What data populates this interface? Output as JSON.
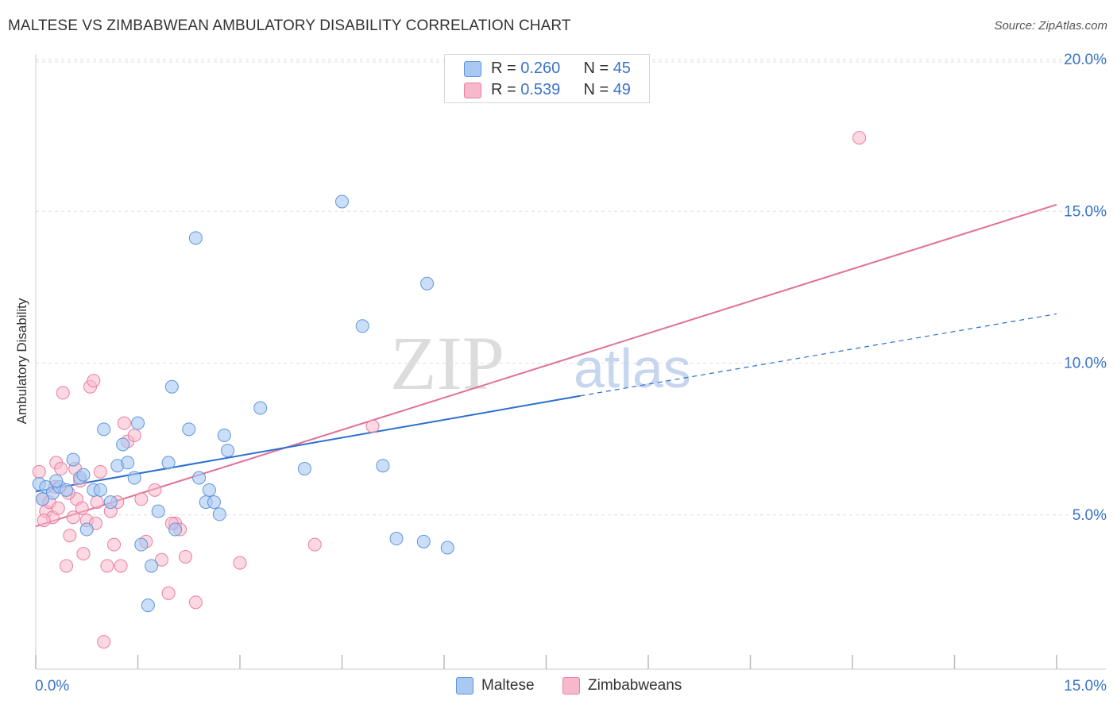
{
  "header": {
    "title": "MALTESE VS ZIMBABWEAN AMBULATORY DISABILITY CORRELATION CHART",
    "source": "Source: ZipAtlas.com"
  },
  "watermark": {
    "zip": "ZIP",
    "atlas": "atlas"
  },
  "legend": {
    "maltese": {
      "r_label": "R = ",
      "r_value": "0.260",
      "n_label": "N = ",
      "n_value": "45"
    },
    "zimbabweans": {
      "r_label": "R = ",
      "r_value": "0.539",
      "n_label": "N = ",
      "n_value": "49"
    }
  },
  "colors": {
    "maltese_fill": "#a9c8f2",
    "maltese_stroke": "#5f95dc",
    "maltese_line": "#2a6fcf",
    "zimbabweans_fill": "#f7b8cb",
    "zimbabweans_stroke": "#e87fa0",
    "zimbabweans_line": "#e07098",
    "tick_label": "#3a74c9"
  },
  "chart_data": {
    "type": "scatter",
    "title": "MALTESE VS ZIMBABWEAN AMBULATORY DISABILITY CORRELATION CHART",
    "xlabel": "",
    "ylabel": "Ambulatory Disability",
    "xlim": [
      0,
      15
    ],
    "ylim": [
      0,
      20
    ],
    "x_tick_labels": [
      "0.0%",
      "15.0%"
    ],
    "y_tick_labels": [
      "5.0%",
      "10.0%",
      "15.0%",
      "20.0%"
    ],
    "y_tick_values": [
      5,
      10,
      15,
      20
    ],
    "grid": true,
    "legend_position": "top-center",
    "series": [
      {
        "name": "Maltese",
        "points": [
          [
            0.05,
            6.1
          ],
          [
            0.15,
            6.0
          ],
          [
            0.25,
            5.8
          ],
          [
            0.35,
            6.0
          ],
          [
            0.45,
            5.9
          ],
          [
            0.55,
            6.9
          ],
          [
            0.65,
            6.3
          ],
          [
            0.75,
            4.6
          ],
          [
            0.85,
            5.9
          ],
          [
            0.95,
            5.9
          ],
          [
            1.0,
            7.9
          ],
          [
            1.1,
            5.5
          ],
          [
            1.2,
            6.7
          ],
          [
            1.28,
            7.4
          ],
          [
            1.35,
            6.8
          ],
          [
            1.45,
            6.3
          ],
          [
            1.5,
            8.1
          ],
          [
            1.55,
            4.1
          ],
          [
            1.65,
            2.1
          ],
          [
            1.7,
            3.4
          ],
          [
            1.8,
            5.2
          ],
          [
            1.95,
            6.8
          ],
          [
            2.0,
            9.3
          ],
          [
            2.05,
            4.6
          ],
          [
            2.25,
            7.9
          ],
          [
            2.35,
            14.2
          ],
          [
            2.4,
            6.3
          ],
          [
            2.5,
            5.5
          ],
          [
            2.55,
            5.9
          ],
          [
            2.62,
            5.5
          ],
          [
            2.7,
            5.1
          ],
          [
            2.77,
            7.7
          ],
          [
            2.82,
            7.2
          ],
          [
            3.3,
            8.6
          ],
          [
            3.95,
            6.6
          ],
          [
            4.5,
            15.4
          ],
          [
            4.8,
            11.3
          ],
          [
            5.1,
            6.7
          ],
          [
            5.3,
            4.3
          ],
          [
            5.7,
            4.2
          ],
          [
            5.75,
            12.7
          ],
          [
            6.05,
            4.0
          ],
          [
            0.1,
            5.6
          ],
          [
            0.3,
            6.2
          ],
          [
            0.7,
            6.4
          ]
        ]
      },
      {
        "name": "Zimbabweans",
        "points": [
          [
            0.05,
            6.5
          ],
          [
            0.1,
            5.6
          ],
          [
            0.15,
            5.2
          ],
          [
            0.2,
            5.5
          ],
          [
            0.25,
            5.0
          ],
          [
            0.3,
            6.8
          ],
          [
            0.33,
            5.3
          ],
          [
            0.37,
            6.6
          ],
          [
            0.4,
            9.1
          ],
          [
            0.45,
            3.4
          ],
          [
            0.5,
            4.4
          ],
          [
            0.55,
            5.0
          ],
          [
            0.6,
            5.6
          ],
          [
            0.65,
            6.2
          ],
          [
            0.7,
            3.8
          ],
          [
            0.75,
            4.9
          ],
          [
            0.8,
            9.3
          ],
          [
            0.85,
            9.5
          ],
          [
            0.9,
            5.5
          ],
          [
            0.95,
            6.5
          ],
          [
            1.0,
            0.9
          ],
          [
            1.05,
            3.4
          ],
          [
            1.15,
            4.1
          ],
          [
            1.2,
            5.5
          ],
          [
            1.25,
            3.4
          ],
          [
            1.3,
            8.1
          ],
          [
            1.35,
            7.5
          ],
          [
            1.45,
            7.7
          ],
          [
            1.55,
            5.6
          ],
          [
            1.62,
            4.2
          ],
          [
            1.75,
            5.9
          ],
          [
            1.85,
            3.6
          ],
          [
            1.95,
            2.5
          ],
          [
            2.05,
            4.8
          ],
          [
            2.12,
            4.6
          ],
          [
            2.2,
            3.7
          ],
          [
            2.35,
            2.2
          ],
          [
            3.0,
            3.5
          ],
          [
            4.1,
            4.1
          ],
          [
            4.95,
            8.0
          ],
          [
            12.1,
            17.5
          ],
          [
            0.12,
            4.9
          ],
          [
            0.28,
            6.0
          ],
          [
            0.48,
            5.8
          ],
          [
            0.58,
            6.6
          ],
          [
            0.68,
            5.3
          ],
          [
            0.88,
            4.8
          ],
          [
            1.1,
            5.2
          ],
          [
            2.0,
            4.8
          ]
        ]
      }
    ],
    "trendlines": [
      {
        "series": "Maltese",
        "x": [
          0,
          8
        ],
        "y": [
          5.85,
          9.0
        ],
        "dashed_extension_to": [
          15,
          11.7
        ]
      },
      {
        "series": "Zimbabweans",
        "x": [
          0,
          15
        ],
        "y": [
          4.7,
          15.3
        ]
      }
    ]
  },
  "bottom_legend": {
    "maltese": "Maltese",
    "zimbabweans": "Zimbabweans"
  }
}
